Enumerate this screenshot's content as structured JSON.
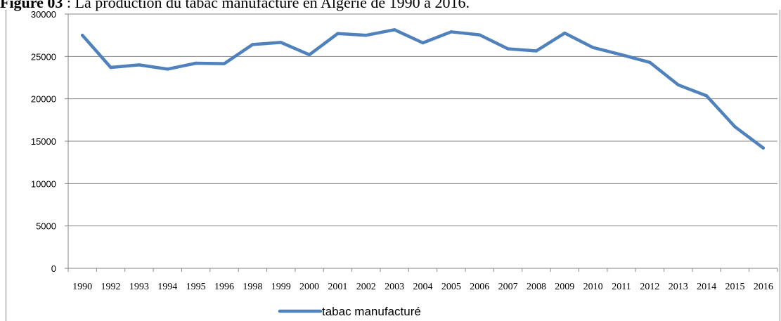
{
  "figure": {
    "caption_label": "Figure 03",
    "caption_text": " : La production du tabac manufacturé en Algérie de 1990 à 2016."
  },
  "chart_data": {
    "type": "line",
    "title": "",
    "xlabel": "",
    "ylabel": "",
    "ylim": [
      0,
      30000
    ],
    "yticks": [
      0,
      5000,
      10000,
      15000,
      20000,
      25000,
      30000
    ],
    "grid": true,
    "legend_position": "bottom",
    "categories": [
      "1990",
      "1992",
      "1993",
      "1994",
      "1995",
      "1996",
      "1998",
      "1999",
      "2000",
      "2001",
      "2002",
      "2003",
      "2004",
      "2005",
      "2006",
      "2007",
      "2008",
      "2009",
      "2010",
      "2011",
      "2012",
      "2013",
      "2014",
      "2015",
      "2016"
    ],
    "series": [
      {
        "name": "tabac manufacturé",
        "color": "#4f81bd",
        "values": [
          27500,
          23700,
          24000,
          23500,
          24200,
          24150,
          26400,
          26650,
          25200,
          27700,
          27500,
          28150,
          26600,
          27900,
          27550,
          25900,
          25650,
          27750,
          26050,
          25200,
          24300,
          21650,
          20350,
          16700,
          14200
        ]
      }
    ]
  }
}
